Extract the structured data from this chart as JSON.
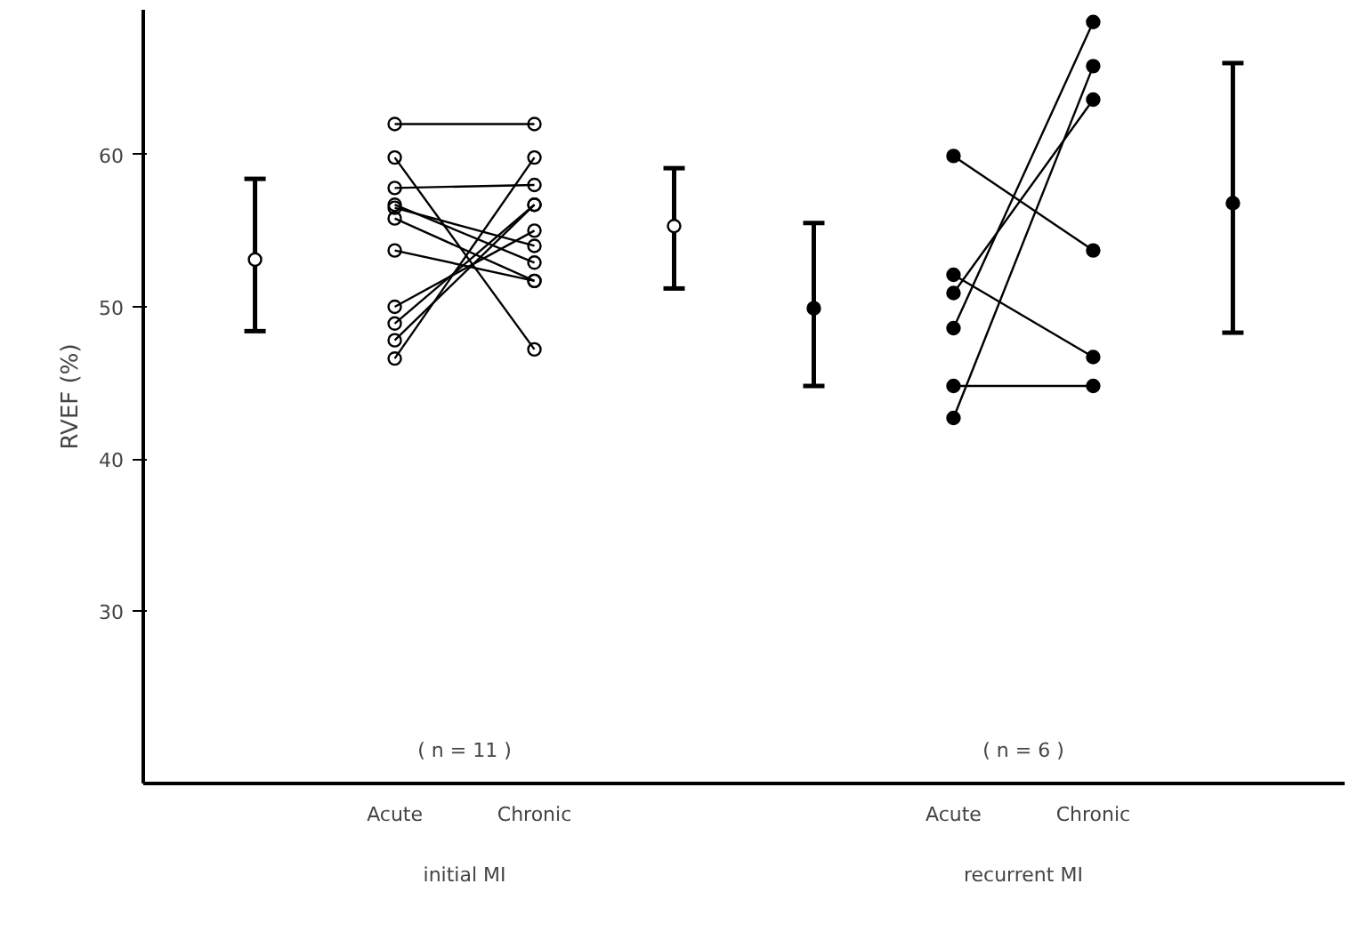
{
  "chart_data": {
    "type": "line",
    "ylabel": "RVEF (%)",
    "categories": [
      null,
      "Acute",
      "Chronic",
      null,
      null,
      "Acute",
      "Chronic",
      null
    ],
    "ylim": [
      18.7,
      69.5
    ],
    "yticks": [
      30,
      40,
      50,
      60
    ],
    "grid": false,
    "marker": "circle",
    "line_style": "solid",
    "annotations": [
      "( n = 11 )",
      "( n = 6 )",
      "initial MI",
      "recurrent MI"
    ],
    "series": [
      {
        "color": "#000000",
        "values": [
          null,
          62.0,
          62.0,
          null,
          null,
          null,
          null,
          null
        ]
      },
      {
        "color": "#000000",
        "values": [
          null,
          59.8,
          47.2,
          null,
          null,
          null,
          null,
          null
        ]
      },
      {
        "color": "#000000",
        "values": [
          null,
          57.8,
          58.0,
          null,
          null,
          null,
          null,
          null
        ]
      },
      {
        "color": "#000000",
        "values": [
          null,
          56.7,
          52.9,
          null,
          null,
          null,
          null,
          null
        ]
      },
      {
        "color": "#000000",
        "values": [
          null,
          56.5,
          54.0,
          null,
          null,
          null,
          null,
          null
        ]
      },
      {
        "color": "#000000",
        "values": [
          null,
          55.8,
          51.7,
          null,
          null,
          null,
          null,
          null
        ]
      },
      {
        "color": "#000000",
        "values": [
          null,
          53.7,
          51.7,
          null,
          null,
          null,
          null,
          null
        ]
      },
      {
        "color": "#000000",
        "values": [
          null,
          50.0,
          55.0,
          null,
          null,
          null,
          null,
          null
        ]
      },
      {
        "color": "#000000",
        "values": [
          null,
          48.9,
          56.7,
          null,
          null,
          null,
          null,
          null
        ]
      },
      {
        "color": "#000000",
        "values": [
          null,
          47.8,
          56.7,
          null,
          null,
          null,
          null,
          null
        ]
      },
      {
        "color": "#000000",
        "values": [
          null,
          46.6,
          59.8,
          null,
          null,
          null,
          null,
          null
        ]
      },
      {
        "color": "#000000",
        "values": [
          null,
          null,
          null,
          null,
          null,
          59.9,
          53.7,
          null
        ]
      },
      {
        "color": "#000000",
        "values": [
          null,
          null,
          null,
          null,
          null,
          52.1,
          46.7,
          null
        ]
      },
      {
        "color": "#000000",
        "values": [
          null,
          null,
          null,
          null,
          null,
          50.9,
          63.6,
          null
        ]
      },
      {
        "color": "#000000",
        "values": [
          null,
          null,
          null,
          null,
          null,
          48.6,
          68.7,
          null
        ]
      },
      {
        "color": "#000000",
        "values": [
          null,
          null,
          null,
          null,
          null,
          44.8,
          44.8,
          null
        ]
      },
      {
        "color": "#000000",
        "values": [
          null,
          null,
          null,
          null,
          null,
          42.7,
          65.8,
          null
        ]
      },
      {
        "type": "scatter",
        "color": "#000000",
        "values": [
          53.1,
          null,
          null,
          55.3,
          49.9,
          null,
          null,
          56.8
        ],
        "errors": [
          [
            48.4,
            58.4
          ],
          null,
          null,
          [
            51.2,
            59.1
          ],
          [
            44.8,
            55.5
          ],
          null,
          null,
          [
            48.3,
            66.0
          ]
        ]
      }
    ]
  }
}
